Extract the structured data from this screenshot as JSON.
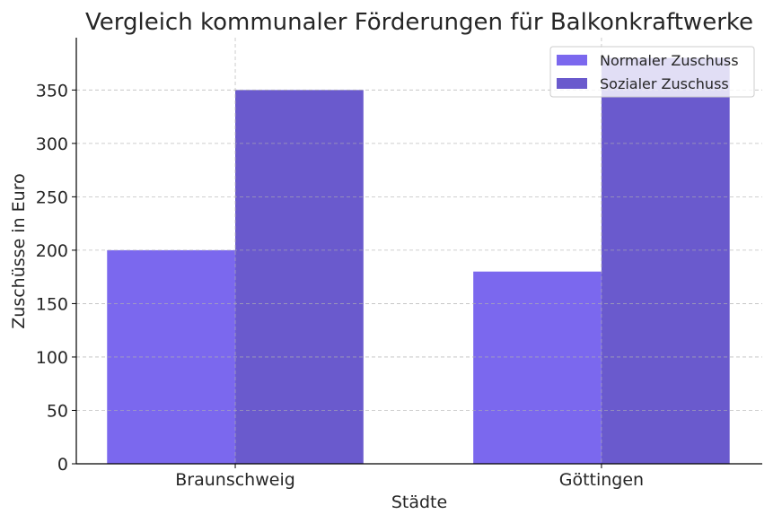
{
  "chart_data": {
    "type": "bar",
    "title": "Vergleich kommunaler Förderungen für Balkonkraftwerke",
    "xlabel": "Städte",
    "ylabel": "Zuschüsse in Euro",
    "categories": [
      "Braunschweig",
      "Göttingen"
    ],
    "series": [
      {
        "name": "Normaler Zuschuss",
        "values": [
          200,
          180
        ],
        "color": "#7B68EE"
      },
      {
        "name": "Sozialer Zuschuss",
        "values": [
          350,
          380
        ],
        "color": "#6A5ACD"
      }
    ],
    "ylim": [
      0,
      399
    ],
    "yticks": [
      0,
      50,
      100,
      150,
      200,
      250,
      300,
      350
    ],
    "grid": true,
    "legend_position": "top-right"
  }
}
